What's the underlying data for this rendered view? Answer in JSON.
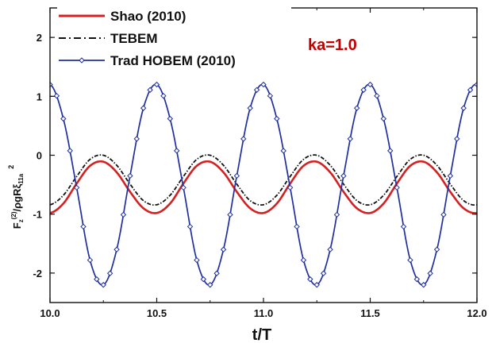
{
  "chart_data": {
    "type": "line",
    "title": "",
    "annotation": "ka=1.0",
    "xlabel": "t/T",
    "ylabel": {
      "base": "F",
      "sub1": "z",
      "sup1": "(2)",
      "mid": "/ρgRξ",
      "sub2": "11a",
      "sup2": "2"
    },
    "xlim": [
      10.0,
      12.0
    ],
    "ylim": [
      -2.5,
      2.5
    ],
    "xticks": [
      "10.0",
      "10.5",
      "11.0",
      "11.5",
      "12.0"
    ],
    "yticks": [
      "2",
      "1",
      "0",
      "-1",
      "-2"
    ],
    "legend_position": "top-left",
    "colors": {
      "shao": "#d42020",
      "tebem": "#111111",
      "hobem": "#1f2fa0",
      "annotation": "#c00000"
    },
    "period": 0.5,
    "series": [
      {
        "name": "Shao (2010)",
        "style": "solid-thick",
        "color": "#d42020",
        "x": [
          10.0,
          10.0625,
          10.125,
          10.1875,
          10.25,
          10.3125,
          10.375,
          10.4375,
          10.5
        ],
        "y": [
          -0.98,
          -0.82,
          -0.48,
          -0.18,
          -0.11,
          -0.29,
          -0.62,
          -0.9,
          -0.98
        ]
      },
      {
        "name": "TEBEM",
        "style": "dash-dot",
        "color": "#111111",
        "x": [
          10.0,
          10.0625,
          10.125,
          10.1875,
          10.25,
          10.3125,
          10.375,
          10.4375,
          10.5
        ],
        "y": [
          -0.84,
          -0.68,
          -0.36,
          -0.07,
          0.0,
          -0.17,
          -0.49,
          -0.77,
          -0.84
        ]
      },
      {
        "name": "Trad HOBEM (2010)",
        "style": "solid-diamond-markers",
        "color": "#1f2fa0",
        "x": [
          10.0,
          10.0625,
          10.125,
          10.1875,
          10.25,
          10.3125,
          10.375,
          10.4375,
          10.5
        ],
        "y": [
          1.2,
          0.62,
          -0.55,
          -1.78,
          -2.2,
          -1.6,
          -0.35,
          0.8,
          1.2
        ]
      }
    ]
  }
}
